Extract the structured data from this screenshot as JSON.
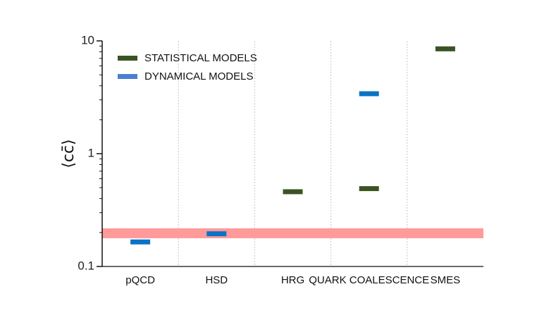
{
  "chart_data": {
    "type": "scatter",
    "title": "",
    "xlabel": "",
    "ylabel": "⟨cc̄⟩",
    "yscale": "log",
    "ylim": [
      0.1,
      10
    ],
    "yticks": [
      {
        "value": 0.1,
        "label": "0.1"
      },
      {
        "value": 1,
        "label": "1"
      },
      {
        "value": 10,
        "label": "10"
      }
    ],
    "categories": [
      "pQCD",
      "HSD",
      "HRG",
      "QUARK COALESCENCE",
      "SMES"
    ],
    "series": [
      {
        "name": "STATISTICAL MODELS",
        "color": "#3b5323",
        "points": [
          {
            "category": "HRG",
            "value": 0.46
          },
          {
            "category": "QUARK COALESCENCE",
            "value": 0.49
          },
          {
            "category": "SMES",
            "value": 8.5
          }
        ]
      },
      {
        "name": "DYNAMICAL MODELS",
        "color": "#0a73c4",
        "points": [
          {
            "category": "pQCD",
            "value": 0.165
          },
          {
            "category": "HSD",
            "value": 0.195
          },
          {
            "category": "QUARK COALESCENCE",
            "value": 3.4
          }
        ]
      }
    ],
    "legend_position": "top-left",
    "legend_colors": [
      "#3b5323",
      "#4a7fd0"
    ],
    "band": {
      "ymin": 0.178,
      "ymax": 0.218,
      "color": "#ff9a9a"
    },
    "grid": {
      "vertical_separators": true
    }
  }
}
